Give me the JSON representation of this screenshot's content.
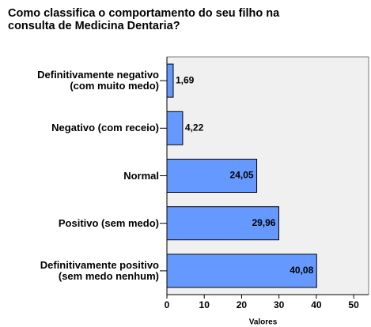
{
  "chart_data": {
    "type": "bar",
    "orientation": "horizontal",
    "title": "Como classifica o comportamento do seu filho na\nconsulta de Medicina Dentaria?",
    "categories": [
      "Definitivamente negativo\n(com muito medo)",
      "Negativo (com receio)",
      "Normal",
      "Positivo (sem medo)",
      "Definitivamente positivo\n(sem medo nenhum)"
    ],
    "values": [
      1.69,
      4.22,
      24.05,
      29.96,
      40.08
    ],
    "value_labels": [
      "1,69",
      "4,22",
      "24,05",
      "29,96",
      "40,08"
    ],
    "color": "#6699ff",
    "xlabel": "Valores",
    "xlim": [
      0,
      54
    ],
    "xticks": [
      0,
      10,
      20,
      30,
      40,
      50
    ]
  }
}
